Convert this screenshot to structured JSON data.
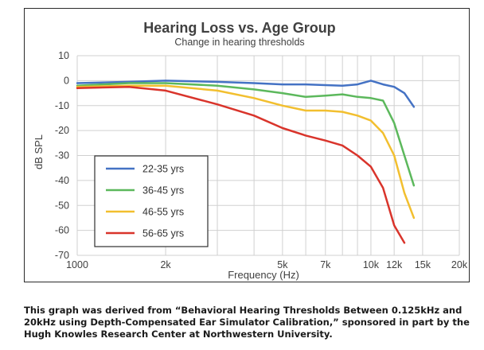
{
  "chart_data": {
    "type": "line",
    "title": "Hearing Loss vs. Age Group",
    "subtitle": "Change in hearing thresholds",
    "xlabel": "Frequency (Hz)",
    "ylabel": "dB SPL",
    "xscale": "log",
    "xlim": [
      1000,
      20000
    ],
    "ylim": [
      -70,
      10
    ],
    "grid": true,
    "legend_position": "lower-left",
    "x_ticks": [
      {
        "value": 1000,
        "label": "1000"
      },
      {
        "value": 2000,
        "label": "2k"
      },
      {
        "value": 5000,
        "label": "5k"
      },
      {
        "value": 7000,
        "label": "7k"
      },
      {
        "value": 10000,
        "label": "10k"
      },
      {
        "value": 12000,
        "label": "12k"
      },
      {
        "value": 15000,
        "label": "15k"
      },
      {
        "value": 20000,
        "label": "20k"
      }
    ],
    "x_minor_gridlines": [
      3000,
      4000,
      6000,
      8000,
      9000
    ],
    "y_ticks": [
      10,
      0,
      -10,
      -20,
      -30,
      -40,
      -50,
      -60,
      -70
    ],
    "series": [
      {
        "name": "22-35 yrs",
        "color": "#4472c4",
        "points": [
          [
            1000,
            -1
          ],
          [
            1500,
            -0.5
          ],
          [
            2000,
            0
          ],
          [
            3000,
            -0.5
          ],
          [
            4000,
            -1
          ],
          [
            5000,
            -1.5
          ],
          [
            6000,
            -1.5
          ],
          [
            7000,
            -1.8
          ],
          [
            8000,
            -2
          ],
          [
            9000,
            -1.5
          ],
          [
            10000,
            0
          ],
          [
            11000,
            -1.5
          ],
          [
            12000,
            -2.5
          ],
          [
            13000,
            -5
          ],
          [
            14000,
            -10.5
          ]
        ]
      },
      {
        "name": "36-45 yrs",
        "color": "#5cb85c",
        "points": [
          [
            1000,
            -2
          ],
          [
            1500,
            -1
          ],
          [
            2000,
            -1
          ],
          [
            3000,
            -2
          ],
          [
            4000,
            -3.5
          ],
          [
            5000,
            -5
          ],
          [
            6000,
            -6.5
          ],
          [
            7000,
            -6
          ],
          [
            8000,
            -5.5
          ],
          [
            9000,
            -6.5
          ],
          [
            10000,
            -7
          ],
          [
            11000,
            -8
          ],
          [
            12000,
            -17
          ],
          [
            13000,
            -30
          ],
          [
            14000,
            -42
          ]
        ]
      },
      {
        "name": "46-55 yrs",
        "color": "#f2bf2f",
        "points": [
          [
            1000,
            -2.5
          ],
          [
            1500,
            -2
          ],
          [
            2000,
            -2
          ],
          [
            3000,
            -4
          ],
          [
            4000,
            -7
          ],
          [
            5000,
            -10
          ],
          [
            6000,
            -12
          ],
          [
            7000,
            -12
          ],
          [
            8000,
            -12.5
          ],
          [
            9000,
            -14
          ],
          [
            10000,
            -16
          ],
          [
            11000,
            -21
          ],
          [
            12000,
            -30
          ],
          [
            13000,
            -45
          ],
          [
            14000,
            -55
          ]
        ]
      },
      {
        "name": "56-65 yrs",
        "color": "#d9342b",
        "points": [
          [
            1000,
            -3
          ],
          [
            1500,
            -2.5
          ],
          [
            2000,
            -4
          ],
          [
            3000,
            -9.5
          ],
          [
            4000,
            -14
          ],
          [
            5000,
            -19
          ],
          [
            6000,
            -22
          ],
          [
            7000,
            -24
          ],
          [
            8000,
            -26
          ],
          [
            9000,
            -30
          ],
          [
            10000,
            -34.5
          ],
          [
            11000,
            -43
          ],
          [
            12000,
            -58
          ],
          [
            13000,
            -65
          ]
        ]
      }
    ]
  },
  "caption": "This graph was derived from “Behavioral Hearing Thresholds Between 0.125kHz and 20kHz using Depth-Compensated Ear Simulator Calibration,” sponsored in part by the Hugh Knowles Research Center at Northwestern University."
}
